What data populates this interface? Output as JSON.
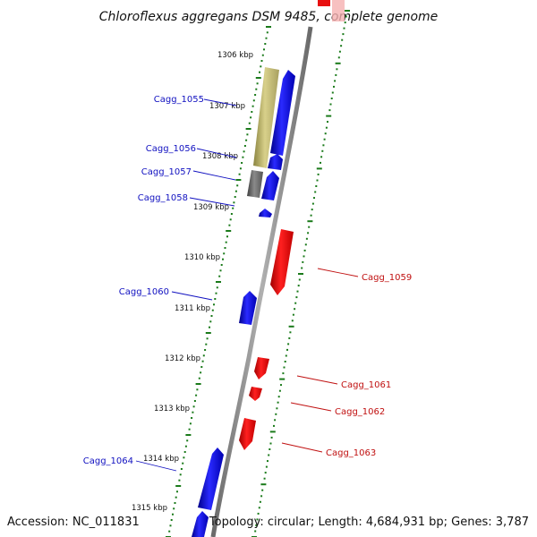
{
  "title": "Chloroflexus aggregans DSM 9485, complete genome",
  "footer": {
    "accession": "Accession: NC_011831",
    "summary": "Topology: circular; Length: 4,684,931 bp; Genes: 3,787"
  },
  "colors": {
    "forward_gene": "#1010e8",
    "reverse_gene": "#e81010",
    "rna_gene": "#b8b060",
    "other_gene": "#707070",
    "backbone": "#8a8a8a",
    "tick": "#1a7a1a"
  },
  "kbp_labels": [
    "1306 kbp",
    "1307 kbp",
    "1308 kbp",
    "1309 kbp",
    "1310 kbp",
    "1311 kbp",
    "1312 kbp",
    "1313 kbp",
    "1314 kbp",
    "1315 kbp"
  ],
  "genes_forward": [
    "Cagg_1055",
    "Cagg_1056",
    "Cagg_1057",
    "Cagg_1058",
    "Cagg_1060",
    "Cagg_1064"
  ],
  "genes_reverse": [
    "Cagg_1059",
    "Cagg_1061",
    "Cagg_1062",
    "Cagg_1063"
  ]
}
